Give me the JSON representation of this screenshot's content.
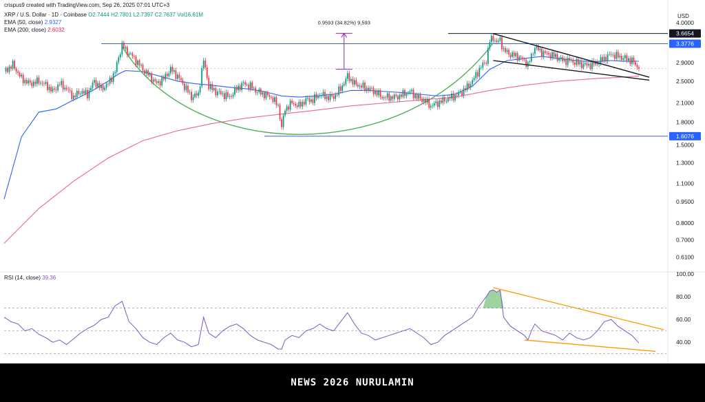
{
  "header": {
    "credit": "crispus9 created with TradingView.com, Sep 26, 2025 07:01 UTC+3",
    "symbol": "XRP / U.S. Dollar · 1D · Coinbase",
    "open": "O2.7444",
    "high": "H2.7801",
    "low": "L2.7397",
    "close": "C2.7637",
    "vol": "Vol16.61M"
  },
  "indicators": {
    "ema50_label": "EMA (50, close)",
    "ema50_value": "2.9327",
    "ema200_label": "EMA (200, close)",
    "ema200_value": "2.6032",
    "rsi_label": "RSI (14, close)",
    "rsi_value": "39.36"
  },
  "annotation": {
    "measure_text": "0.9593 (34.82%) 9,593"
  },
  "footer": {
    "text": "NEWS 2026 NURULAMIN"
  },
  "colors": {
    "up": "#089981",
    "down": "#f23645",
    "ema50": "#2962ff",
    "ema200": "#f06292",
    "cup": "#4caf50",
    "hline": "#3a5bd9",
    "rsi": "#7e57c2",
    "trend_rsi": "#ff9800",
    "measure": "#9c27b0"
  },
  "chart_data": [
    {
      "type": "candlestick",
      "title": "XRP / U.S. Dollar · 1D · Coinbase",
      "currency": "USD",
      "scale": "log",
      "ylim": [
        0.55,
        4.2
      ],
      "y_ticks": [
        "4.0000",
        "3.6654",
        "3.3776",
        "2.9000",
        "2.5000",
        "2.1000",
        "1.8000",
        "1.6076",
        "1.5000",
        "1.3000",
        "1.1000",
        "0.9500",
        "0.8000",
        "0.7000",
        "0.6100"
      ],
      "price_labels": [
        {
          "value": 3.6654,
          "label": "3.6654",
          "style": "dark"
        },
        {
          "value": 3.3776,
          "label": "3.3776",
          "style": "blue"
        },
        {
          "value": 1.6076,
          "label": "1.6076",
          "style": "blue"
        }
      ],
      "key_levels": [
        3.6654,
        3.3776,
        1.6076
      ],
      "last_close": 2.7637,
      "series": [
        {
          "name": "EMA (50, close)",
          "last": 2.9327
        },
        {
          "name": "EMA (200, close)",
          "last": 2.6032
        }
      ],
      "price_path": [
        [
          0,
          2.7
        ],
        [
          5,
          2.85
        ],
        [
          10,
          2.55
        ],
        [
          15,
          2.45
        ],
        [
          20,
          2.5
        ],
        [
          25,
          2.4
        ],
        [
          28,
          2.3
        ],
        [
          32,
          2.45
        ],
        [
          36,
          2.35
        ],
        [
          40,
          2.2
        ],
        [
          44,
          2.3
        ],
        [
          48,
          2.25
        ],
        [
          52,
          2.5
        ],
        [
          56,
          2.35
        ],
        [
          60,
          2.45
        ],
        [
          64,
          2.7
        ],
        [
          68,
          3.35
        ],
        [
          70,
          3.2
        ],
        [
          73,
          3.1
        ],
        [
          76,
          2.95
        ],
        [
          80,
          2.75
        ],
        [
          84,
          2.6
        ],
        [
          88,
          2.45
        ],
        [
          92,
          2.55
        ],
        [
          96,
          2.75
        ],
        [
          100,
          2.6
        ],
        [
          104,
          2.4
        ],
        [
          108,
          2.2
        ],
        [
          112,
          2.25
        ],
        [
          115,
          2.95
        ],
        [
          118,
          2.4
        ],
        [
          122,
          2.3
        ],
        [
          126,
          2.25
        ],
        [
          130,
          2.2
        ],
        [
          134,
          2.35
        ],
        [
          138,
          2.45
        ],
        [
          142,
          2.4
        ],
        [
          146,
          2.3
        ],
        [
          150,
          2.25
        ],
        [
          154,
          2.2
        ],
        [
          158,
          2.05
        ],
        [
          160,
          1.72
        ],
        [
          162,
          2.0
        ],
        [
          166,
          2.1
        ],
        [
          170,
          2.05
        ],
        [
          174,
          2.15
        ],
        [
          178,
          2.15
        ],
        [
          182,
          2.25
        ],
        [
          186,
          2.2
        ],
        [
          190,
          2.2
        ],
        [
          194,
          2.35
        ],
        [
          198,
          2.6
        ],
        [
          202,
          2.45
        ],
        [
          206,
          2.4
        ],
        [
          210,
          2.35
        ],
        [
          214,
          2.3
        ],
        [
          218,
          2.2
        ],
        [
          222,
          2.2
        ],
        [
          226,
          2.2
        ],
        [
          230,
          2.25
        ],
        [
          234,
          2.3
        ],
        [
          238,
          2.2
        ],
        [
          242,
          2.15
        ],
        [
          246,
          2.05
        ],
        [
          250,
          2.1
        ],
        [
          254,
          2.15
        ],
        [
          258,
          2.2
        ],
        [
          262,
          2.25
        ],
        [
          266,
          2.35
        ],
        [
          270,
          2.5
        ],
        [
          274,
          2.75
        ],
        [
          278,
          2.95
        ],
        [
          280,
          3.45
        ],
        [
          282,
          3.55
        ],
        [
          284,
          3.4
        ],
        [
          286,
          3.5
        ],
        [
          288,
          3.2
        ],
        [
          292,
          3.1
        ],
        [
          296,
          3.05
        ],
        [
          300,
          2.95
        ],
        [
          302,
          2.85
        ],
        [
          304,
          3.05
        ],
        [
          306,
          3.3
        ],
        [
          310,
          3.15
        ],
        [
          314,
          3.1
        ],
        [
          318,
          3.05
        ],
        [
          322,
          2.95
        ],
        [
          326,
          2.95
        ],
        [
          330,
          2.9
        ],
        [
          334,
          2.85
        ],
        [
          338,
          2.85
        ],
        [
          342,
          2.9
        ],
        [
          346,
          3.0
        ],
        [
          350,
          3.1
        ],
        [
          354,
          3.05
        ],
        [
          358,
          3.0
        ],
        [
          362,
          2.95
        ],
        [
          366,
          2.76
        ]
      ],
      "ema50_path": [
        [
          0,
          0.97
        ],
        [
          10,
          1.6
        ],
        [
          20,
          1.95
        ],
        [
          30,
          2.0
        ],
        [
          40,
          2.15
        ],
        [
          50,
          2.3
        ],
        [
          60,
          2.5
        ],
        [
          66,
          2.65
        ],
        [
          70,
          2.72
        ],
        [
          80,
          2.7
        ],
        [
          90,
          2.6
        ],
        [
          100,
          2.5
        ],
        [
          110,
          2.45
        ],
        [
          120,
          2.42
        ],
        [
          130,
          2.38
        ],
        [
          140,
          2.35
        ],
        [
          150,
          2.3
        ],
        [
          160,
          2.22
        ],
        [
          170,
          2.2
        ],
        [
          180,
          2.22
        ],
        [
          190,
          2.25
        ],
        [
          200,
          2.32
        ],
        [
          210,
          2.32
        ],
        [
          220,
          2.3
        ],
        [
          230,
          2.28
        ],
        [
          240,
          2.25
        ],
        [
          250,
          2.22
        ],
        [
          260,
          2.25
        ],
        [
          270,
          2.4
        ],
        [
          280,
          2.75
        ],
        [
          290,
          2.95
        ],
        [
          300,
          3.0
        ],
        [
          310,
          3.05
        ],
        [
          320,
          3.0
        ],
        [
          330,
          2.95
        ],
        [
          340,
          2.92
        ],
        [
          350,
          2.95
        ],
        [
          360,
          2.93
        ],
        [
          366,
          2.9327
        ]
      ],
      "ema200_path": [
        [
          0,
          0.68
        ],
        [
          20,
          0.9
        ],
        [
          40,
          1.12
        ],
        [
          60,
          1.35
        ],
        [
          80,
          1.55
        ],
        [
          100,
          1.68
        ],
        [
          120,
          1.78
        ],
        [
          140,
          1.86
        ],
        [
          160,
          1.92
        ],
        [
          180,
          1.98
        ],
        [
          200,
          2.05
        ],
        [
          220,
          2.1
        ],
        [
          240,
          2.15
        ],
        [
          260,
          2.2
        ],
        [
          280,
          2.32
        ],
        [
          300,
          2.42
        ],
        [
          320,
          2.5
        ],
        [
          340,
          2.55
        ],
        [
          360,
          2.59
        ],
        [
          366,
          2.6032
        ]
      ]
    },
    {
      "type": "line",
      "title": "RSI (14, close)",
      "ylim": [
        25,
        100
      ],
      "y_ticks": [
        "100.00",
        "80.00",
        "60.00",
        "40.00"
      ],
      "guide_levels": [
        70,
        50,
        30
      ],
      "last": 39.36,
      "rsi_path": [
        [
          0,
          62
        ],
        [
          4,
          58
        ],
        [
          8,
          56
        ],
        [
          12,
          50
        ],
        [
          16,
          52
        ],
        [
          20,
          47
        ],
        [
          24,
          44
        ],
        [
          28,
          40
        ],
        [
          32,
          42
        ],
        [
          36,
          38
        ],
        [
          40,
          43
        ],
        [
          44,
          48
        ],
        [
          48,
          52
        ],
        [
          52,
          55
        ],
        [
          56,
          60
        ],
        [
          60,
          62
        ],
        [
          64,
          72
        ],
        [
          68,
          76
        ],
        [
          72,
          58
        ],
        [
          76,
          52
        ],
        [
          80,
          44
        ],
        [
          84,
          40
        ],
        [
          88,
          38
        ],
        [
          92,
          44
        ],
        [
          96,
          48
        ],
        [
          100,
          42
        ],
        [
          104,
          40
        ],
        [
          108,
          36
        ],
        [
          112,
          38
        ],
        [
          115,
          62
        ],
        [
          118,
          48
        ],
        [
          122,
          44
        ],
        [
          126,
          50
        ],
        [
          130,
          54
        ],
        [
          134,
          56
        ],
        [
          138,
          52
        ],
        [
          142,
          46
        ],
        [
          146,
          42
        ],
        [
          150,
          40
        ],
        [
          154,
          38
        ],
        [
          158,
          34
        ],
        [
          160,
          34
        ],
        [
          162,
          42
        ],
        [
          166,
          46
        ],
        [
          170,
          44
        ],
        [
          174,
          50
        ],
        [
          178,
          52
        ],
        [
          182,
          56
        ],
        [
          186,
          52
        ],
        [
          190,
          50
        ],
        [
          194,
          58
        ],
        [
          198,
          66
        ],
        [
          202,
          56
        ],
        [
          206,
          48
        ],
        [
          210,
          46
        ],
        [
          214,
          42
        ],
        [
          218,
          44
        ],
        [
          222,
          46
        ],
        [
          226,
          48
        ],
        [
          230,
          50
        ],
        [
          234,
          52
        ],
        [
          238,
          48
        ],
        [
          242,
          44
        ],
        [
          246,
          38
        ],
        [
          250,
          40
        ],
        [
          254,
          46
        ],
        [
          258,
          50
        ],
        [
          262,
          54
        ],
        [
          266,
          58
        ],
        [
          270,
          62
        ],
        [
          274,
          72
        ],
        [
          278,
          80
        ],
        [
          280,
          85
        ],
        [
          282,
          86
        ],
        [
          284,
          84
        ],
        [
          286,
          86
        ],
        [
          288,
          62
        ],
        [
          292,
          54
        ],
        [
          296,
          50
        ],
        [
          300,
          46
        ],
        [
          302,
          42
        ],
        [
          304,
          50
        ],
        [
          306,
          56
        ],
        [
          310,
          50
        ],
        [
          314,
          48
        ],
        [
          318,
          46
        ],
        [
          322,
          42
        ],
        [
          326,
          48
        ],
        [
          330,
          44
        ],
        [
          334,
          42
        ],
        [
          338,
          44
        ],
        [
          342,
          50
        ],
        [
          346,
          58
        ],
        [
          350,
          60
        ],
        [
          354,
          54
        ],
        [
          358,
          50
        ],
        [
          362,
          46
        ],
        [
          366,
          39.36
        ]
      ]
    }
  ]
}
